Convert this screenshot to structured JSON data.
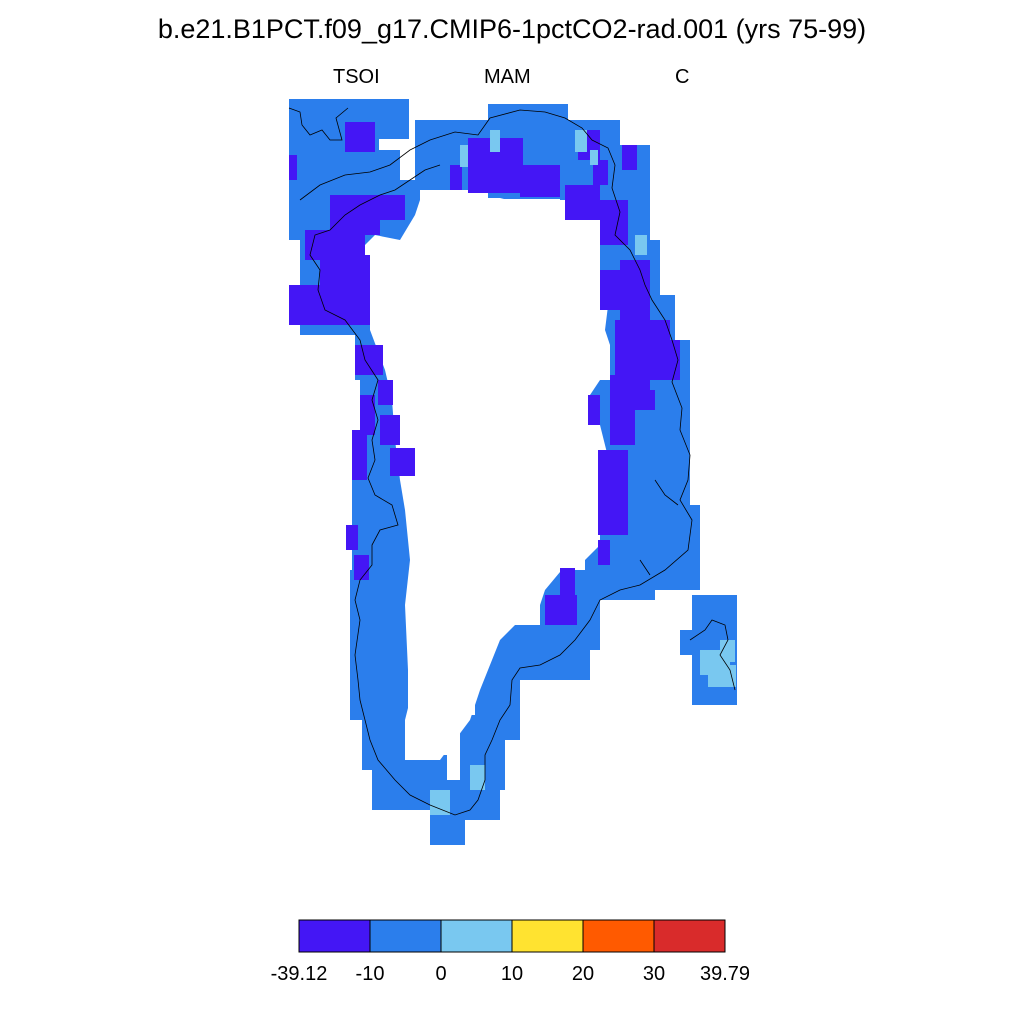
{
  "title": "b.e21.B1PCT.f09_g17.CMIP6-1pctCO2-rad.001 (yrs 75-99)",
  "subtitles": {
    "left": "TSOI",
    "center": "MAM",
    "right": "C"
  },
  "colors": {
    "c1": "#4416f5",
    "c2": "#2b7eec",
    "c3": "#79c8f0",
    "c4": "#ffe330",
    "c5": "#ff5a00",
    "c6": "#d92b2b"
  },
  "colorbar": {
    "labels": [
      "-39.12",
      "-10",
      "0",
      "10",
      "20",
      "30",
      "39.79"
    ],
    "colors": [
      "#4416f5",
      "#2b7eec",
      "#79c8f0",
      "#ffe330",
      "#ff5a00",
      "#d92b2b"
    ]
  }
}
